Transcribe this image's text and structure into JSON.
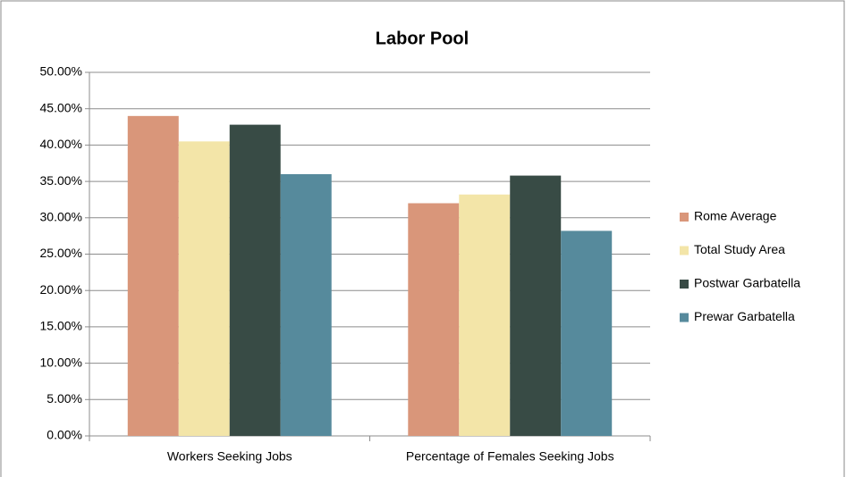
{
  "chart_data": {
    "type": "bar",
    "title": "Labor Pool",
    "categories": [
      "Workers Seeking Jobs",
      "Percentage of Females Seeking Jobs"
    ],
    "series": [
      {
        "name": "Rome Average",
        "color": "#d9967a",
        "values": [
          44.0,
          32.0
        ]
      },
      {
        "name": "Total Study Area",
        "color": "#f3e5a8",
        "values": [
          40.5,
          33.2
        ]
      },
      {
        "name": "Postwar Garbatella",
        "color": "#384b45",
        "values": [
          42.8,
          35.8
        ]
      },
      {
        "name": "Prewar Garbatella",
        "color": "#568a9c",
        "values": [
          36.0,
          28.2
        ]
      }
    ],
    "ylim": [
      0,
      50
    ],
    "yticks": [
      {
        "value": 0,
        "label": "0.00%"
      },
      {
        "value": 5,
        "label": "5.00%"
      },
      {
        "value": 10,
        "label": "10.00%"
      },
      {
        "value": 15,
        "label": "15.00%"
      },
      {
        "value": 20,
        "label": "20.00%"
      },
      {
        "value": 25,
        "label": "25.00%"
      },
      {
        "value": 30,
        "label": "30.00%"
      },
      {
        "value": 35,
        "label": "35.00%"
      },
      {
        "value": 40,
        "label": "40.00%"
      },
      {
        "value": 45,
        "label": "45.00%"
      },
      {
        "value": 50,
        "label": "50.00%"
      }
    ],
    "grid": true,
    "legend": "right"
  }
}
